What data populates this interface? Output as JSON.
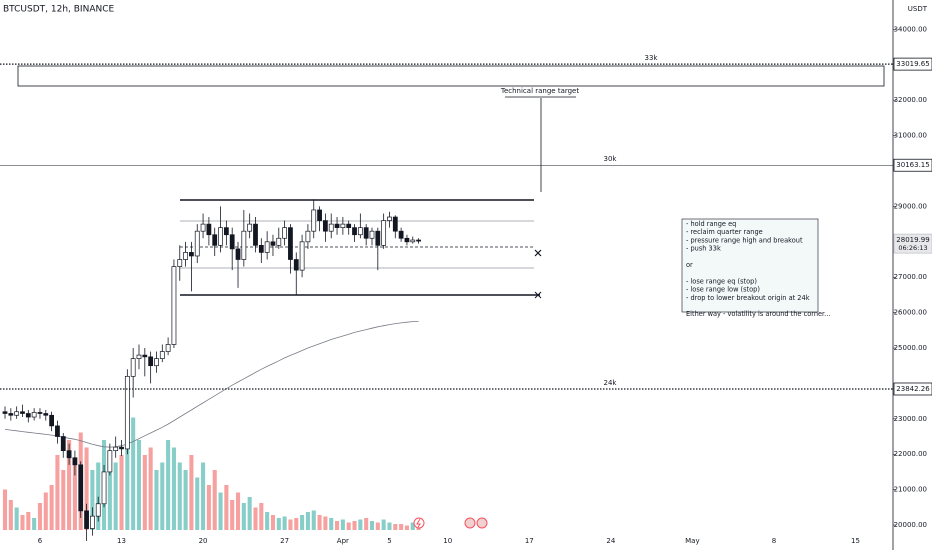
{
  "chart_data": {
    "type": "candlestick",
    "title": "BTCUSDT, 12h, BINANCE",
    "currency": "USDT",
    "x": [
      3,
      3.5,
      4,
      4.5,
      5,
      5.5,
      6,
      6.5,
      7,
      7.5,
      8,
      8.5,
      9,
      9.5,
      10,
      10.5,
      11,
      11.5,
      12,
      12.5,
      13,
      13.5,
      14,
      14.5,
      15,
      15.5,
      16,
      16.5,
      17,
      17.5,
      18,
      18.5,
      19,
      19.5,
      20,
      20.5,
      21,
      21.5,
      22,
      22.5,
      23,
      23.5,
      24,
      24.5,
      25,
      25.5,
      26,
      26.5,
      27,
      27.5,
      28,
      28.5,
      29,
      29.5,
      30,
      30.5,
      31,
      31.5,
      32,
      32.5,
      33,
      33.5,
      34,
      34.5,
      35,
      35.5,
      36,
      36.5,
      37,
      37.5,
      38,
      38.5
    ],
    "open": [
      23200,
      23150,
      23100,
      23200,
      23150,
      23050,
      23180,
      23150,
      23100,
      22800,
      22500,
      22100,
      21900,
      21700,
      20400,
      19900,
      20250,
      20600,
      21500,
      22100,
      22200,
      22150,
      24200,
      24700,
      24800,
      24750,
      24500,
      24700,
      24900,
      25100,
      27300,
      27500,
      27700,
      27600,
      28300,
      28500,
      28200,
      27900,
      28400,
      28200,
      27800,
      27500,
      28300,
      28500,
      27900,
      27700,
      28000,
      27900,
      28100,
      28400,
      27500,
      27200,
      28000,
      28300,
      28900,
      28600,
      28300,
      28500,
      28400,
      28500,
      28400,
      28200,
      28400,
      28100,
      28300,
      27900,
      28600,
      28700,
      28300,
      28100,
      28000,
      28050
    ],
    "high": [
      23350,
      23300,
      23350,
      23400,
      23250,
      23300,
      23300,
      23250,
      23200,
      22950,
      22600,
      22300,
      22100,
      21800,
      20600,
      20500,
      20800,
      21700,
      22300,
      22500,
      22400,
      24400,
      25000,
      25100,
      25000,
      24900,
      24900,
      25100,
      25300,
      27500,
      27900,
      28000,
      28000,
      28500,
      28800,
      28700,
      28400,
      29000,
      28600,
      28400,
      28000,
      28900,
      28800,
      28700,
      28100,
      28300,
      28200,
      28400,
      28600,
      28500,
      27700,
      28200,
      28500,
      29200,
      29000,
      28800,
      28800,
      28700,
      28700,
      28600,
      28500,
      28800,
      28500,
      28400,
      28400,
      28800,
      28850,
      28750,
      28400,
      28200,
      28150,
      28100
    ],
    "low": [
      23000,
      22950,
      23000,
      23050,
      22900,
      22950,
      23000,
      22950,
      22650,
      22300,
      21900,
      21700,
      21400,
      20200,
      19550,
      19700,
      20100,
      20500,
      21400,
      21900,
      21950,
      22000,
      23600,
      24400,
      24200,
      24000,
      24300,
      24600,
      24800,
      25000,
      26900,
      27300,
      26600,
      27400,
      28100,
      27900,
      27600,
      27700,
      27900,
      27200,
      26700,
      27300,
      28100,
      27700,
      27400,
      27500,
      27600,
      27800,
      27900,
      27100,
      26500,
      27000,
      27800,
      28100,
      28300,
      28000,
      28100,
      28200,
      28200,
      28200,
      28000,
      28100,
      27900,
      27900,
      27200,
      27800,
      28400,
      28100,
      28000,
      27900,
      27950,
      27950
    ],
    "close": [
      23150,
      23100,
      23200,
      23150,
      23050,
      23180,
      23150,
      23100,
      22800,
      22500,
      22100,
      21900,
      21700,
      20400,
      19900,
      20250,
      20600,
      21500,
      22100,
      22200,
      22150,
      24200,
      24700,
      24800,
      24750,
      24500,
      24700,
      24900,
      25100,
      27300,
      27500,
      27700,
      27600,
      28300,
      28500,
      28200,
      27900,
      28400,
      28200,
      27800,
      27500,
      28300,
      28500,
      27900,
      27700,
      28000,
      27900,
      28100,
      28400,
      27500,
      27200,
      28000,
      28300,
      28900,
      28600,
      28300,
      28500,
      28400,
      28500,
      28400,
      28200,
      28400,
      28100,
      28300,
      27900,
      28600,
      28700,
      28300,
      28100,
      28000,
      28050,
      28020
    ],
    "volume": [
      27,
      20,
      15,
      10,
      12,
      8,
      18,
      25,
      30,
      50,
      40,
      60,
      45,
      65,
      55,
      40,
      45,
      60,
      50,
      45,
      50,
      95,
      75,
      60,
      50,
      55,
      40,
      45,
      60,
      55,
      45,
      40,
      50,
      35,
      45,
      30,
      40,
      25,
      30,
      20,
      25,
      18,
      22,
      15,
      18,
      12,
      10,
      8,
      9,
      7,
      8,
      10,
      12,
      13,
      10,
      9,
      8,
      6,
      7,
      5,
      6,
      7,
      8,
      6,
      5,
      7,
      5,
      4,
      4,
      3,
      5,
      4
    ],
    "volume_lim": [
      0,
      100
    ],
    "ma": [
      22700,
      22680,
      22660,
      22640,
      22620,
      22600,
      22580,
      22560,
      22540,
      22510,
      22480,
      22450,
      22420,
      22380,
      22330,
      22280,
      22240,
      22210,
      22200,
      22210,
      22240,
      22290,
      22360,
      22440,
      22520,
      22600,
      22680,
      22760,
      22850,
      22950,
      23050,
      23150,
      23250,
      23350,
      23450,
      23550,
      23650,
      23750,
      23850,
      23950,
      24040,
      24130,
      24220,
      24310,
      24400,
      24480,
      24560,
      24640,
      24720,
      24790,
      24860,
      24930,
      25000,
      25060,
      25120,
      25180,
      25240,
      25290,
      25340,
      25390,
      25440,
      25480,
      25520,
      25560,
      25600,
      25630,
      25660,
      25690,
      25710,
      25730,
      25745,
      25750
    ],
    "up_color": "#ffffff",
    "down_color": "#131722",
    "volume_up_color": "#26a69a",
    "volume_down_color": "#ef5350",
    "ma_color": "#787b86",
    "xlim": [
      2.57,
      79.22
    ],
    "xticks": [
      6,
      13,
      20,
      27,
      {
        "value": 32,
        "label": "Apr"
      },
      {
        "value": 36,
        "label": "5"
      },
      {
        "value": 41,
        "label": "10"
      },
      {
        "value": 48,
        "label": "17"
      },
      {
        "value": 55,
        "label": "24"
      },
      {
        "value": 62,
        "label": "May"
      },
      {
        "value": 69,
        "label": "8"
      },
      {
        "value": 76,
        "label": "15"
      }
    ],
    "ylim": [
      19294,
      34831
    ],
    "yticks": [
      {
        "value": 20000,
        "label": "20000.00"
      },
      {
        "value": 21000,
        "label": "21000.00"
      },
      {
        "value": 22000,
        "label": "22000.00"
      },
      {
        "value": 23000,
        "label": "23000.00"
      },
      {
        "value": 25000,
        "label": "25000.00"
      },
      {
        "value": 26000,
        "label": "26000.00"
      },
      {
        "value": 27000,
        "label": "27000.00"
      },
      {
        "value": 29000,
        "label": "29000.00"
      },
      {
        "value": 31000,
        "label": "31000.00"
      },
      {
        "value": 32000,
        "label": "32000.00"
      },
      {
        "value": 34000,
        "label": "34000.00"
      }
    ],
    "levels": [
      {
        "value": 33019.65,
        "text": "33k",
        "style": "dotted"
      },
      {
        "value": 30163.15,
        "text": "30k",
        "style": "solid"
      },
      {
        "value": 23842.26,
        "text": "24k",
        "style": "dotted"
      }
    ],
    "last_price": 28019.99,
    "countdown": "06:26:13",
    "target_label": "Technical range target",
    "note": [
      [
        "- hold range eq",
        "- reclaim quarter range",
        "- pressure range high and breakout",
        "- push 33k"
      ],
      [
        "or"
      ],
      [
        "- lose range eq (stop)",
        "- lose range low (stop)",
        "- drop to lower breakout origin at 24k"
      ],
      [
        "Either way - volatility is around the corner..."
      ]
    ]
  }
}
